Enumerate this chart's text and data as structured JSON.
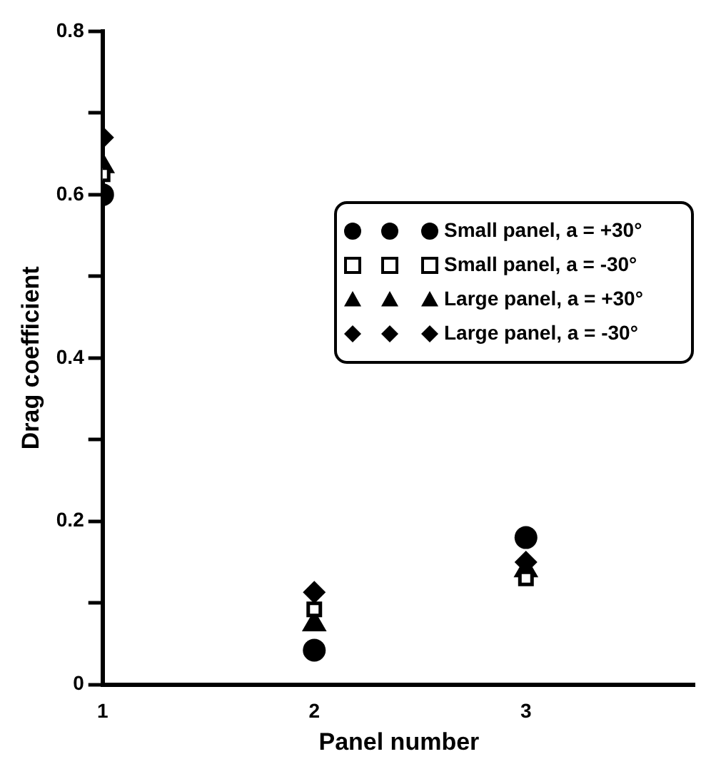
{
  "chart_data": {
    "type": "scatter",
    "xlabel": "Panel number",
    "ylabel": "Drag coefficient",
    "xlim": [
      1,
      3.8
    ],
    "xticks": [
      1,
      2,
      3
    ],
    "ylim": [
      0,
      0.8
    ],
    "yticks": [
      0,
      {
        "value": 0.1,
        "label": null
      },
      0.2,
      {
        "value": 0.3,
        "label": null
      },
      0.4,
      {
        "value": 0.5,
        "label": null
      },
      0.6,
      {
        "value": 0.7,
        "label": null
      },
      0.8
    ],
    "grid": false,
    "legend": "right",
    "series": [
      {
        "name": "Small panel, a = +30°",
        "color": "#000000",
        "marker": "circle",
        "x": [
          1,
          2,
          3
        ],
        "values": [
          0.6,
          0.042,
          0.18
        ]
      },
      {
        "name": "Small panel, a = -30°",
        "color": "#000000",
        "marker": "square",
        "x": [
          1,
          2,
          3
        ],
        "values": [
          0.625,
          0.092,
          0.13
        ]
      },
      {
        "name": "Large panel, a = +30°",
        "color": "#000000",
        "marker": "triangle",
        "x": [
          1,
          2,
          3
        ],
        "values": [
          0.635,
          0.074,
          0.14
        ]
      },
      {
        "name": "Large panel, a = -30°",
        "color": "#000000",
        "marker": "diamond",
        "x": [
          1,
          2,
          3
        ],
        "values": [
          0.67,
          0.113,
          0.15
        ]
      }
    ]
  }
}
